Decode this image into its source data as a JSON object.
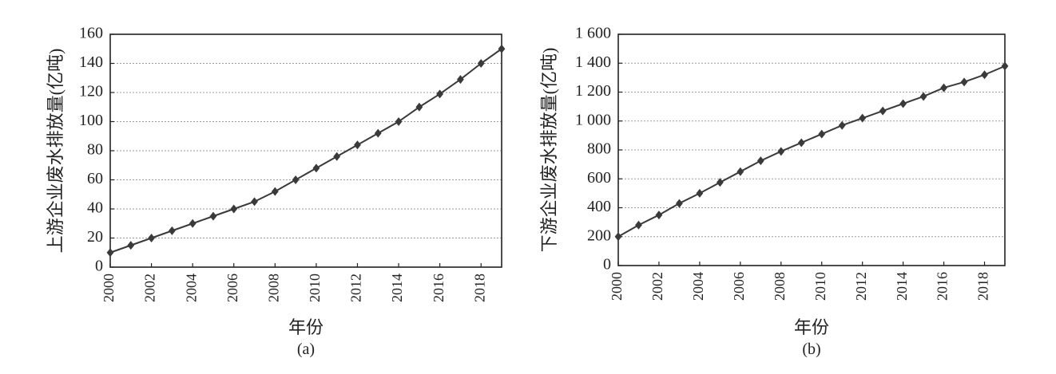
{
  "chart_data": [
    {
      "type": "line",
      "caption": "(a)",
      "xlabel": "年份",
      "ylabel": "上游企业废水排放量(亿吨)",
      "x": [
        2000,
        2001,
        2002,
        2003,
        2004,
        2005,
        2006,
        2007,
        2008,
        2009,
        2010,
        2011,
        2012,
        2013,
        2014,
        2015,
        2016,
        2017,
        2018,
        2019
      ],
      "series": [
        {
          "values": [
            10,
            15,
            20,
            25,
            30,
            35,
            40,
            45,
            52,
            60,
            68,
            76,
            84,
            92,
            100,
            110,
            119,
            129,
            140,
            150
          ]
        }
      ],
      "xticks": [
        "2000",
        "2002",
        "2004",
        "2006",
        "2008",
        "2010",
        "2012",
        "2014",
        "2016",
        "2018"
      ],
      "yticks": [
        "0",
        "20",
        "40",
        "60",
        "80",
        "100",
        "120",
        "140",
        "160"
      ],
      "xlim": [
        2000,
        2019
      ],
      "ylim": [
        0,
        160
      ],
      "grid": true,
      "marker": "diamond",
      "color": "#3a3a3a"
    },
    {
      "type": "line",
      "caption": "(b)",
      "xlabel": "年份",
      "ylabel": "下游企业废水排放量(亿吨)",
      "x": [
        2000,
        2001,
        2002,
        2003,
        2004,
        2005,
        2006,
        2007,
        2008,
        2009,
        2010,
        2011,
        2012,
        2013,
        2014,
        2015,
        2016,
        2017,
        2018,
        2019
      ],
      "series": [
        {
          "values": [
            200,
            280,
            350,
            430,
            500,
            575,
            650,
            725,
            790,
            850,
            910,
            970,
            1020,
            1070,
            1120,
            1170,
            1230,
            1270,
            1320,
            1380
          ]
        }
      ],
      "xticks": [
        "2000",
        "2002",
        "2004",
        "2006",
        "2008",
        "2010",
        "2012",
        "2014",
        "2016",
        "2018"
      ],
      "yticks": [
        "0",
        "200",
        "400",
        "600",
        "800",
        "1 000",
        "1 200",
        "1 400",
        "1 600"
      ],
      "xlim": [
        2000,
        2019
      ],
      "ylim": [
        0,
        1600
      ],
      "grid": true,
      "marker": "diamond",
      "color": "#3a3a3a"
    }
  ]
}
